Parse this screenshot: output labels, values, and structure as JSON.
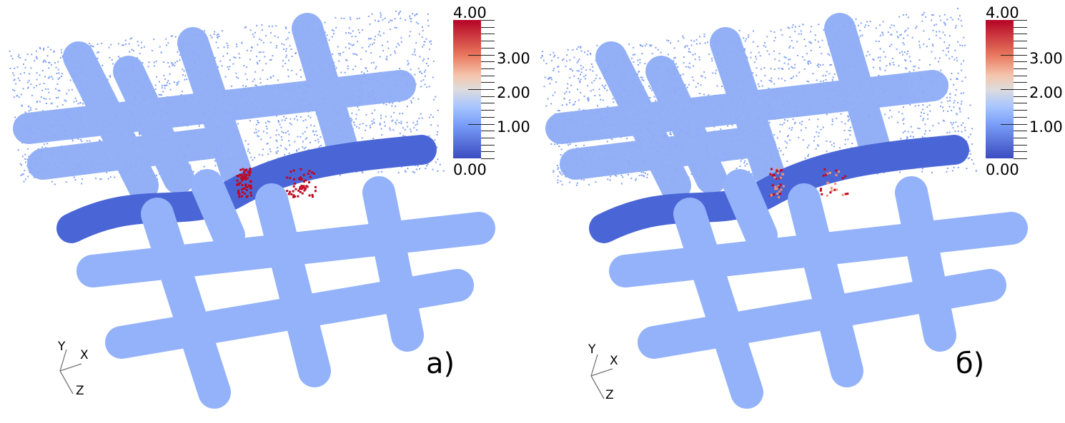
{
  "panels": [
    {
      "label": "а)",
      "variant": "a"
    },
    {
      "label": "б)",
      "variant": "b"
    }
  ],
  "colorbar": {
    "min_label": "0.00",
    "max_label": "4.00",
    "tick_labels": [
      "3.00",
      "2.00",
      "1.00"
    ],
    "range": [
      0,
      4
    ],
    "colormap": [
      "#3b4cc0",
      "#7b9ff9",
      "#dddcdc",
      "#f5c4ac",
      "#b40426"
    ]
  },
  "axes": {
    "x": "X",
    "y": "Y",
    "z": "Z"
  },
  "colors": {
    "fiber_light": "#8eacf6",
    "fiber_dark": "#4a66d6",
    "scatter": "#7f9ff2",
    "hot": "#c0081f"
  }
}
